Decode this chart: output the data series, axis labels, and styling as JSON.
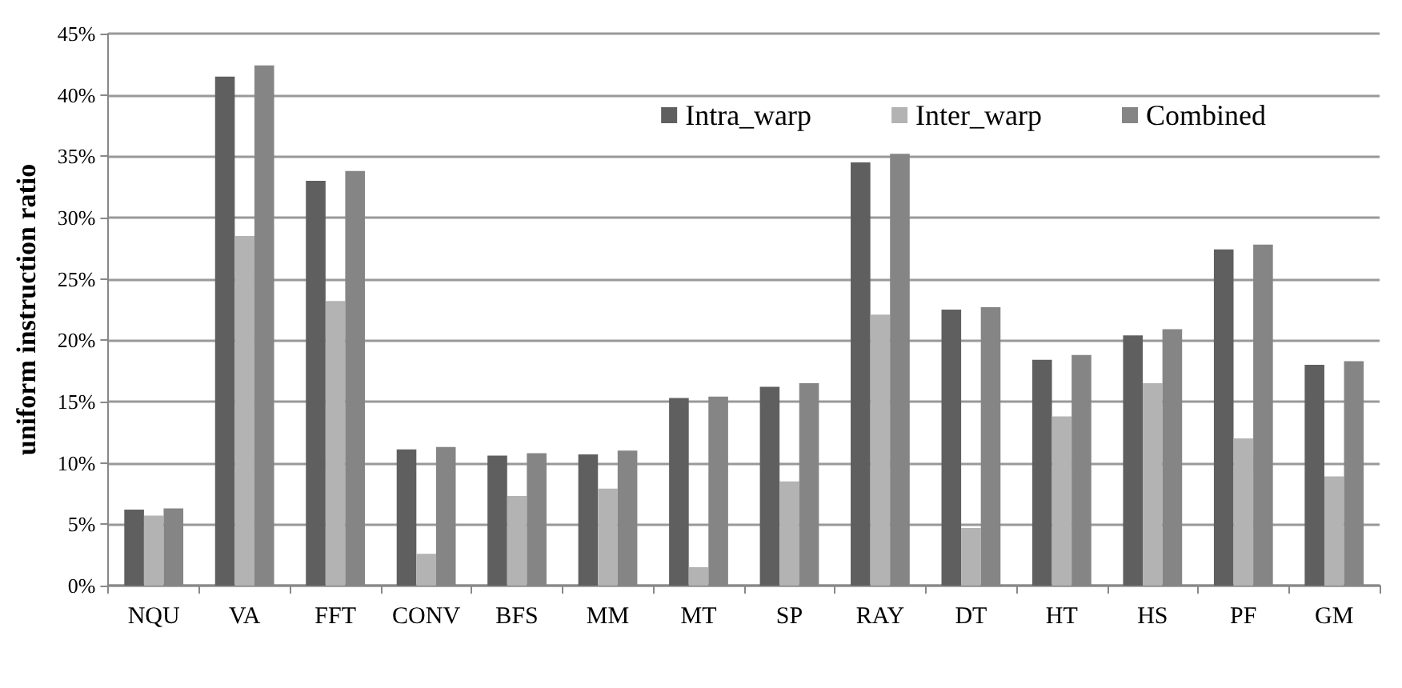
{
  "chart_data": {
    "type": "bar",
    "ylabel": "uniform instruction ratio",
    "categories": [
      "NQU",
      "VA",
      "FFT",
      "CONV",
      "BFS",
      "MM",
      "MT",
      "SP",
      "RAY",
      "DT",
      "HT",
      "HS",
      "PF",
      "GM"
    ],
    "series": [
      {
        "name": "Intra_warp",
        "color": "#5f5f5f",
        "values": [
          6.2,
          41.5,
          33.0,
          11.1,
          10.6,
          10.7,
          15.3,
          16.2,
          34.5,
          22.5,
          18.4,
          20.4,
          27.4,
          18.0
        ]
      },
      {
        "name": "Inter_warp",
        "color": "#b3b3b3",
        "values": [
          5.7,
          28.5,
          23.2,
          2.6,
          7.3,
          7.9,
          1.5,
          8.5,
          22.1,
          4.7,
          13.8,
          16.5,
          12.0,
          8.9
        ]
      },
      {
        "name": "Combined",
        "color": "#858585",
        "values": [
          6.3,
          42.4,
          33.8,
          11.3,
          10.8,
          11.0,
          15.4,
          16.5,
          35.2,
          22.7,
          18.8,
          20.9,
          27.8,
          18.3
        ]
      }
    ],
    "ylim": [
      0,
      45
    ],
    "yticks": [
      {
        "value": 0,
        "label": "0%"
      },
      {
        "value": 5,
        "label": "5%"
      },
      {
        "value": 10,
        "label": "10%"
      },
      {
        "value": 15,
        "label": "15%"
      },
      {
        "value": 20,
        "label": "20%"
      },
      {
        "value": 25,
        "label": "25%"
      },
      {
        "value": 30,
        "label": "30%"
      },
      {
        "value": 35,
        "label": "35%"
      },
      {
        "value": 40,
        "label": "40%"
      },
      {
        "value": 45,
        "label": "45%"
      }
    ],
    "grid": "y",
    "legend": "top right"
  }
}
